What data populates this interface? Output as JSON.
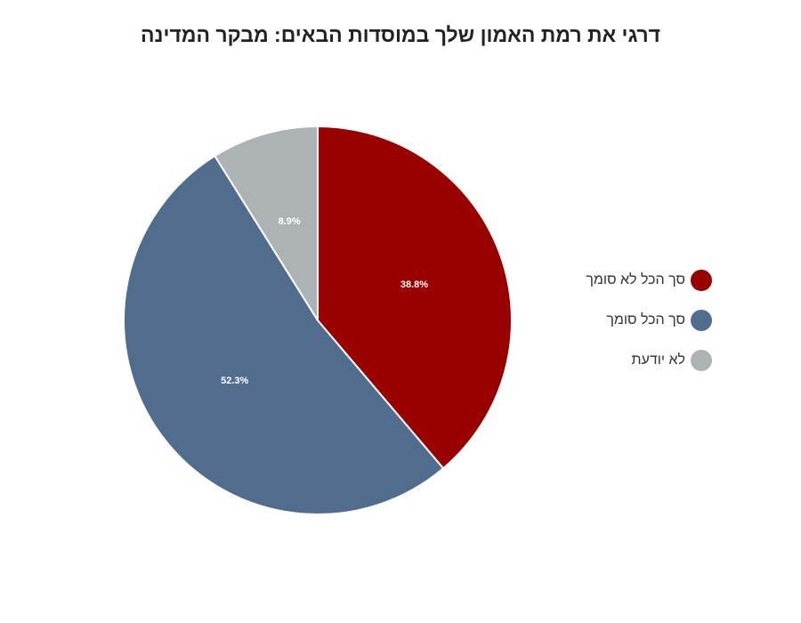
{
  "chart_data": {
    "type": "pie",
    "title": "דרגי את רמת האמון שלך במוסדות הבאים: מבקר המדינה",
    "slices": [
      {
        "name": "סך הכל לא סומך",
        "value": 38.8,
        "label": "38.8%",
        "color": "#990000"
      },
      {
        "name": "סך הכל סומך",
        "value": 52.3,
        "label": "52.3%",
        "color": "#516d8e"
      },
      {
        "name": "לא יודעת",
        "value": 8.9,
        "label": "8.9%",
        "color": "#adb3b5"
      }
    ],
    "legend_position": "right",
    "start_angle": "top",
    "direction": "clockwise"
  }
}
